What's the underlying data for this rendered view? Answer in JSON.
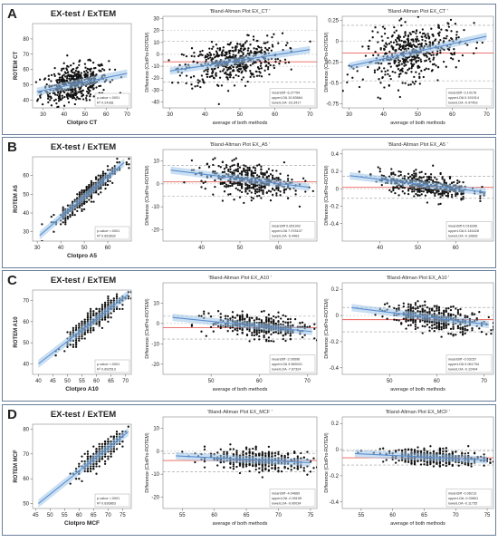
{
  "colors": {
    "points": "#111111",
    "fit": "#5b8fd0",
    "band": "#9ec5e8",
    "mean": "#e8625a",
    "limits": "#9a9a9a",
    "border": "#6b7f9a",
    "grid": "#e6e6e6"
  },
  "rows": [
    {
      "letter": "A",
      "heading": "EX-test / ExTEM",
      "panels": [
        {
          "kind": "scatter",
          "title": "",
          "xlabel": "Clotpro CT",
          "ylabel": "ROTEM CT",
          "xlim": [
            25,
            72
          ],
          "ylim": [
            35,
            90
          ],
          "xticks": [
            30,
            40,
            50,
            60,
            70
          ],
          "yticks": [
            40,
            50,
            60,
            70,
            80
          ],
          "legend": [
            "p-value  <.0001",
            "R²  0.24381"
          ]
        },
        {
          "kind": "ba",
          "title": "'Bland-Altman Plot EX_CT '",
          "xlabel": "average of both methods",
          "ylabel": "Difference (ClotPro-ROTEM)",
          "xlim": [
            28,
            72
          ],
          "ylim": [
            -45,
            32
          ],
          "xticks": [
            30,
            40,
            50,
            60,
            70
          ],
          "yticks": [
            -40,
            -30,
            -20,
            -10,
            0,
            10,
            20,
            30
          ],
          "legend": [
            "meanDiff  -6.27754",
            "upperLOA  10.83664",
            "lowerLOA  -23.3417"
          ]
        },
        {
          "kind": "ba",
          "title": "'Bland-Altman Plot EX_CT '",
          "xlabel": "average of both methods",
          "ylabel": "Difference (ClotPro-ROTEM)",
          "xlim": [
            28,
            72
          ],
          "ylim": [
            -0.8,
            0.3
          ],
          "xticks": [
            30,
            40,
            50,
            60,
            70
          ],
          "yticks": [
            -0.75,
            -0.5,
            -0.25,
            0.0,
            0.25
          ],
          "legend": [
            "meanDiff  -0.14178",
            "upperLOA  0.191914",
            "lowerLOA  -0.47453"
          ]
        }
      ]
    },
    {
      "letter": "B",
      "heading": "EX-test / ExTEM",
      "panels": [
        {
          "kind": "scatter",
          "title": "",
          "xlabel": "Clotpro A5",
          "ylabel": "ROTEM A5",
          "xlim": [
            28,
            70
          ],
          "ylim": [
            25,
            70
          ],
          "xticks": [
            30,
            40,
            50,
            60
          ],
          "yticks": [
            30,
            40,
            50,
            60
          ],
          "legend": [
            "p-value  <.0001",
            "R²  0.853632"
          ]
        },
        {
          "kind": "ba",
          "title": "'Bland-Altman Plot EX_A5 '",
          "xlabel": "",
          "ylabel": "Difference (ClotPro-ROTEM)",
          "xlim": [
            30,
            70
          ],
          "ylim": [
            -25,
            15
          ],
          "xticks": [
            40,
            50,
            60
          ],
          "yticks": [
            -20,
            -10,
            0,
            10
          ],
          "legend": [
            "meanDiff  0.851902",
            "upperLOA  7.978107",
            "lowerLOA  -5.4463"
          ]
        },
        {
          "kind": "ba",
          "title": "'Bland-Altman Plot EX_A5 '",
          "xlabel": "",
          "ylabel": "Difference (ClotPro-ROTEM)",
          "xlim": [
            30,
            70
          ],
          "ylim": [
            -0.6,
            0.45
          ],
          "xticks": [
            40,
            50,
            60
          ],
          "yticks": [
            -0.4,
            -0.2,
            0.0,
            0.2,
            0.4
          ],
          "legend": [
            "meanDiff  0.016396",
            "upperLOA  0.145428",
            "lowerLOA  -0.10896"
          ]
        }
      ]
    },
    {
      "letter": "C",
      "heading": "EX-test / ExTEM",
      "panels": [
        {
          "kind": "scatter",
          "title": "",
          "xlabel": "Clotpro A10",
          "ylabel": "ROTEM A10",
          "xlim": [
            38,
            72
          ],
          "ylim": [
            35,
            75
          ],
          "xticks": [
            40,
            45,
            50,
            55,
            60,
            65,
            70
          ],
          "yticks": [
            40,
            50,
            60,
            70
          ],
          "legend": [
            "p-value  <.0001",
            "R²  0.892513"
          ]
        },
        {
          "kind": "ba",
          "title": "'Bland-Altman Plot EX_A10 '",
          "xlabel": "average of both methods",
          "ylabel": "Difference (ClotPro-ROTEM)",
          "xlim": [
            40,
            72
          ],
          "ylim": [
            -25,
            20
          ],
          "xticks": [
            50,
            60,
            70
          ],
          "yticks": [
            -20,
            -10,
            0,
            10
          ],
          "legend": [
            "meanDiff  -2.09596",
            "upperLOA  3.565021",
            "lowerLOA  -7.67324"
          ]
        },
        {
          "kind": "ba",
          "title": "'Bland-Altman Plot EX_A10 '",
          "xlabel": "average of both methods",
          "ylabel": "Difference (ClotPro-ROTEM)",
          "xlim": [
            40,
            72
          ],
          "ylim": [
            -0.45,
            0.25
          ],
          "xticks": [
            50,
            60,
            70
          ],
          "yticks": [
            -0.4,
            -0.2,
            0.0,
            0.2
          ],
          "legend": [
            "meanDiff  -0.03157",
            "upperLOA  0.061754",
            "lowerLOA  -0.12494"
          ]
        }
      ]
    },
    {
      "letter": "D",
      "heading": "EX-test / ExTEM",
      "panels": [
        {
          "kind": "scatter",
          "title": "",
          "xlabel": "Clotpro MCF",
          "ylabel": "ROTEM MCF",
          "xlim": [
            44,
            78
          ],
          "ylim": [
            48,
            82
          ],
          "xticks": [
            45,
            50,
            55,
            60,
            65,
            70,
            75
          ],
          "yticks": [
            50,
            60,
            70,
            80
          ],
          "legend": [
            "p-value  <.0001",
            "R²  0.836863"
          ]
        },
        {
          "kind": "ba",
          "title": "'Bland-Altman Plot EX_MCF '",
          "xlabel": "average of both methods",
          "ylabel": "Difference (ClotPro-ROTEM)",
          "xlim": [
            52,
            76
          ],
          "ylim": [
            -25,
            15
          ],
          "xticks": [
            55,
            60,
            65,
            70,
            75
          ],
          "yticks": [
            -20,
            -10,
            0,
            10
          ],
          "legend": [
            "meanDiff  -4.04669",
            "upperLOA  -0.90195",
            "lowerLOA  -9.00034"
          ]
        },
        {
          "kind": "ba",
          "title": "'Bland-Altman Plot EX_MCF '",
          "xlabel": "average of both methods",
          "ylabel": "Difference (ClotPro-ROTEM)",
          "xlim": [
            52,
            76
          ],
          "ylim": [
            -0.45,
            0.25
          ],
          "xticks": [
            55,
            60,
            65,
            70,
            75
          ],
          "yticks": [
            -0.4,
            -0.2,
            0.0,
            0.2
          ],
          "legend": [
            "meanDiff  -0.06213",
            "upperLOA  -0.00801",
            "lowerLOA  -0.11755"
          ]
        }
      ]
    }
  ],
  "chart_data": [
    {
      "type": "scatter",
      "panel": "A1",
      "xlabel": "Clotpro CT",
      "ylabel": "ROTEM CT",
      "xlim": [
        25,
        72
      ],
      "ylim": [
        35,
        90
      ],
      "fit": {
        "x": [
          27,
          70
        ],
        "y": [
          45.5,
          57.5
        ]
      },
      "n": 480,
      "x_center": 45,
      "x_spread": 8,
      "y_noise": 6,
      "grid": false
    },
    {
      "type": "scatter",
      "panel": "A2",
      "title": "'Bland-Altman Plot EX_CT '",
      "xlabel": "average of both methods",
      "ylabel": "Difference (ClotPro-ROTEM)",
      "xlim": [
        28,
        72
      ],
      "ylim": [
        -45,
        32
      ],
      "mean": -6.27754,
      "upper": 10.83664,
      "lower": -23.3417,
      "extra_lines": [
        -10,
        0,
        20
      ],
      "fit": {
        "x": [
          30,
          70
        ],
        "y": [
          -14,
          4
        ]
      },
      "n": 480,
      "x_center": 48,
      "x_spread": 7,
      "y_noise": 8.5
    },
    {
      "type": "scatter",
      "panel": "A3",
      "title": "'Bland-Altman Plot EX_CT '",
      "xlabel": "average of both methods",
      "ylabel": "Difference (ClotPro-ROTEM)",
      "xlim": [
        28,
        72
      ],
      "ylim": [
        -0.8,
        0.3
      ],
      "mean": -0.14178,
      "upper": 0.191914,
      "lower": -0.47453,
      "extra_lines": [
        0.0
      ],
      "fit": {
        "x": [
          30,
          70
        ],
        "y": [
          -0.3,
          0.06
        ]
      },
      "n": 480,
      "x_center": 48,
      "x_spread": 7,
      "y_noise": 0.16
    },
    {
      "type": "scatter",
      "panel": "B1",
      "xlabel": "Clotpro A5",
      "ylabel": "ROTEM A5",
      "xlim": [
        28,
        70
      ],
      "ylim": [
        25,
        70
      ],
      "fit": {
        "x": [
          31,
          67
        ],
        "y": [
          28,
          67
        ]
      },
      "n": 420,
      "x_center": 52,
      "x_spread": 6,
      "y_noise": 2.5
    },
    {
      "type": "scatter",
      "panel": "B2",
      "title": "'Bland-Altman Plot EX_A5 '",
      "ylabel": "Difference (ClotPro-ROTEM)",
      "xlim": [
        30,
        70
      ],
      "ylim": [
        -25,
        15
      ],
      "mean": 0.851902,
      "upper": 7.978107,
      "lower": -5.4463,
      "extra_lines": [
        0
      ],
      "fit": {
        "x": [
          32,
          68
        ],
        "y": [
          6,
          -1.5
        ]
      },
      "n": 420,
      "x_center": 52,
      "x_spread": 6,
      "y_noise": 3.5
    },
    {
      "type": "scatter",
      "panel": "B3",
      "title": "'Bland-Altman Plot EX_A5 '",
      "ylabel": "Difference (ClotPro-ROTEM)",
      "xlim": [
        30,
        70
      ],
      "ylim": [
        -0.6,
        0.45
      ],
      "mean": 0.016396,
      "upper": 0.145428,
      "lower": -0.10896,
      "extra_lines": [
        0.0
      ],
      "fit": {
        "x": [
          32,
          68
        ],
        "y": [
          0.15,
          -0.04
        ]
      },
      "n": 420,
      "x_center": 52,
      "x_spread": 6,
      "y_noise": 0.065
    },
    {
      "type": "scatter",
      "panel": "C1",
      "xlabel": "Clotpro A10",
      "ylabel": "ROTEM A10",
      "xlim": [
        38,
        72
      ],
      "ylim": [
        35,
        75
      ],
      "fit": {
        "x": [
          40,
          71
        ],
        "y": [
          40,
          73
        ]
      },
      "n": 420,
      "x_center": 60,
      "x_spread": 5,
      "y_noise": 2.2
    },
    {
      "type": "scatter",
      "panel": "C2",
      "title": "'Bland-Altman Plot EX_A10 '",
      "xlabel": "average of both methods",
      "ylabel": "Difference (ClotPro-ROTEM)",
      "xlim": [
        40,
        72
      ],
      "ylim": [
        -25,
        20
      ],
      "mean": -2.09596,
      "upper": 3.565021,
      "lower": -7.67324,
      "extra_lines": [
        0
      ],
      "fit": {
        "x": [
          42,
          71
        ],
        "y": [
          3,
          -4
        ]
      },
      "n": 420,
      "x_center": 60,
      "x_spread": 5,
      "y_noise": 2.8
    },
    {
      "type": "scatter",
      "panel": "C3",
      "title": "'Bland-Altman Plot EX_A10 '",
      "xlabel": "average of both methods",
      "ylabel": "Difference (ClotPro-ROTEM)",
      "xlim": [
        40,
        72
      ],
      "ylim": [
        -0.45,
        0.25
      ],
      "mean": -0.03157,
      "upper": 0.061754,
      "lower": -0.12494,
      "extra_lines": [
        0.0
      ],
      "fit": {
        "x": [
          42,
          71
        ],
        "y": [
          0.06,
          -0.07
        ]
      },
      "n": 420,
      "x_center": 60,
      "x_spread": 5,
      "y_noise": 0.047
    },
    {
      "type": "scatter",
      "panel": "D1",
      "xlabel": "Clotpro MCF",
      "ylabel": "ROTEM MCF",
      "xlim": [
        44,
        78
      ],
      "ylim": [
        48,
        82
      ],
      "fit": {
        "x": [
          46,
          77
        ],
        "y": [
          50,
          79
        ]
      },
      "n": 400,
      "x_center": 67,
      "x_spread": 4,
      "y_noise": 1.8
    },
    {
      "type": "scatter",
      "panel": "D2",
      "title": "'Bland-Altman Plot EX_MCF '",
      "xlabel": "average of both methods",
      "ylabel": "Difference (ClotPro-ROTEM)",
      "xlim": [
        52,
        76
      ],
      "ylim": [
        -25,
        15
      ],
      "mean": -4.04669,
      "upper": -0.90195,
      "lower": -9.00034,
      "extra_lines": [
        0
      ],
      "fit": {
        "x": [
          54,
          75
        ],
        "y": [
          -2,
          -5
        ]
      },
      "n": 400,
      "x_center": 67,
      "x_spread": 4,
      "y_noise": 2.2
    },
    {
      "type": "scatter",
      "panel": "D3",
      "title": "'Bland-Altman Plot EX_MCF '",
      "xlabel": "average of both methods",
      "ylabel": "Difference (ClotPro-ROTEM)",
      "xlim": [
        52,
        76
      ],
      "ylim": [
        -0.45,
        0.25
      ],
      "mean": -0.06213,
      "upper": -0.00801,
      "lower": -0.11755,
      "extra_lines": [
        0.0
      ],
      "fit": {
        "x": [
          54,
          75
        ],
        "y": [
          -0.03,
          -0.08
        ]
      },
      "n": 400,
      "x_center": 67,
      "x_spread": 4,
      "y_noise": 0.03
    }
  ]
}
